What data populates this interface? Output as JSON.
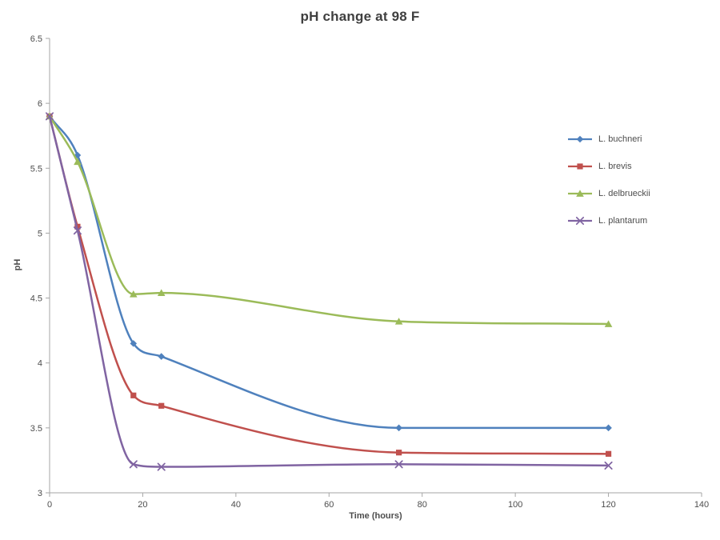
{
  "chart_data": {
    "type": "line",
    "title": "pH change at 98 F",
    "xlabel": "Time (hours)",
    "ylabel": "pH",
    "x": [
      0,
      6,
      18,
      24,
      75,
      120
    ],
    "series": [
      {
        "name": "L. buchneri",
        "color": "#4F81BD",
        "marker": "diamond",
        "values": [
          5.9,
          5.6,
          4.15,
          4.05,
          3.5,
          3.5
        ]
      },
      {
        "name": "L. brevis",
        "color": "#C0504D",
        "marker": "square",
        "values": [
          5.9,
          5.05,
          3.75,
          3.67,
          3.31,
          3.3
        ]
      },
      {
        "name": "L. delbrueckii",
        "color": "#9BBB59",
        "marker": "triangle",
        "values": [
          5.9,
          5.55,
          4.53,
          4.54,
          4.32,
          4.3
        ]
      },
      {
        "name": "L. plantarum",
        "color": "#8064A2",
        "marker": "x",
        "values": [
          5.9,
          5.02,
          3.22,
          3.2,
          3.22,
          3.21
        ]
      }
    ],
    "xlim": [
      0,
      140
    ],
    "ylim": [
      3,
      6.5
    ],
    "x_ticks": [
      0,
      20,
      40,
      60,
      80,
      100,
      120,
      140
    ],
    "y_ticks": [
      3,
      3.5,
      4,
      4.5,
      5,
      5.5,
      6,
      6.5
    ],
    "grid": false,
    "smoothed": true,
    "legend_position": "right"
  },
  "palette": {
    "background": "#FFFFFF",
    "title_color": "#3F3F3F",
    "label_color": "#4D4D4D",
    "axis_color": "#A6A6A6"
  }
}
